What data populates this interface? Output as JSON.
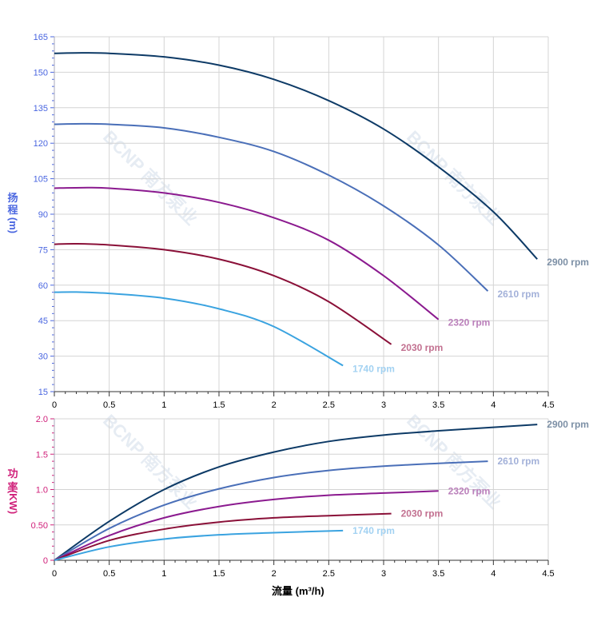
{
  "chart_data": [
    {
      "type": "line",
      "ylabel_chars": [
        "扬",
        "程",
        "(m)"
      ],
      "ylabel": "扬程 (m)",
      "xlim": [
        0,
        4.5
      ],
      "ylim": [
        15,
        165
      ],
      "yticks": [
        "15",
        "30",
        "45",
        "60",
        "75",
        "90",
        "105",
        "120",
        "135",
        "150",
        "165"
      ],
      "xticks": [
        "0",
        "0.5",
        "1",
        "1.5",
        "2",
        "2.5",
        "3",
        "3.5",
        "4",
        "4.5"
      ],
      "grid": true,
      "axis_color": "#4a66e0",
      "series": [
        {
          "name": "2900 rpm",
          "color": "#0d3a66",
          "label_color": "#7d90a6",
          "x": [
            0,
            0.25,
            0.5,
            1,
            1.5,
            2,
            2.5,
            3,
            3.5,
            4,
            4.4
          ],
          "y": [
            158,
            158.2,
            158,
            156.5,
            153,
            147,
            138,
            126,
            110,
            91,
            71
          ]
        },
        {
          "name": "2610 rpm",
          "color": "#4a6fb8",
          "label_color": "#a3b1d9",
          "x": [
            0,
            0.25,
            0.5,
            1,
            1.5,
            2,
            2.5,
            3,
            3.5,
            3.95
          ],
          "y": [
            128,
            128.2,
            128,
            126.5,
            122.5,
            116.5,
            106.5,
            93.5,
            77,
            57.5
          ]
        },
        {
          "name": "2320 rpm",
          "color": "#8b1a8f",
          "label_color": "#bb80bb",
          "x": [
            0,
            0.25,
            0.5,
            1,
            1.5,
            2,
            2.5,
            3,
            3.5
          ],
          "y": [
            101,
            101.2,
            101,
            99,
            95,
            88.5,
            79,
            64,
            45.5
          ]
        },
        {
          "name": "2030 rpm",
          "color": "#8a1038",
          "label_color": "#c27090",
          "x": [
            0,
            0.2,
            0.5,
            1,
            1.5,
            2,
            2.5,
            3.07
          ],
          "y": [
            77.3,
            77.5,
            77,
            75,
            71,
            64,
            53,
            35
          ]
        },
        {
          "name": "1740 rpm",
          "color": "#3aa3e0",
          "label_color": "#a3d2f2",
          "x": [
            0,
            0.2,
            0.5,
            1,
            1.5,
            2,
            2.63
          ],
          "y": [
            57,
            57.1,
            56.5,
            54.5,
            50,
            42.5,
            26
          ]
        }
      ]
    },
    {
      "type": "line",
      "ylabel_chars": [
        "功",
        "率",
        "(KW)"
      ],
      "ylabel": "功率 (KW)",
      "xlabel": "流量 (m³/h)",
      "xlim": [
        0,
        4.5
      ],
      "ylim": [
        0,
        2.0
      ],
      "yticks": [
        "0",
        "0.50",
        "1.0",
        "1.5",
        "2.0"
      ],
      "xticks": [
        "0",
        "0.5",
        "1",
        "1.5",
        "2",
        "2.5",
        "3",
        "3.5",
        "4",
        "4.5"
      ],
      "grid": true,
      "axis_color": "#d0207a",
      "series": [
        {
          "name": "2900 rpm",
          "color": "#0d3a66",
          "label_color": "#7d90a6",
          "x": [
            0,
            0.5,
            1,
            1.5,
            2,
            2.5,
            3,
            3.5,
            4,
            4.4
          ],
          "y": [
            0,
            0.55,
            1.0,
            1.32,
            1.53,
            1.68,
            1.77,
            1.83,
            1.88,
            1.92
          ]
        },
        {
          "name": "2610 rpm",
          "color": "#4a6fb8",
          "label_color": "#a3b1d9",
          "x": [
            0,
            0.5,
            1,
            1.5,
            2,
            2.5,
            3,
            3.5,
            3.95
          ],
          "y": [
            0,
            0.45,
            0.78,
            1.01,
            1.17,
            1.27,
            1.33,
            1.37,
            1.4
          ]
        },
        {
          "name": "2320 rpm",
          "color": "#8b1a8f",
          "label_color": "#bb80bb",
          "x": [
            0,
            0.5,
            1,
            1.5,
            2,
            2.5,
            3,
            3.5
          ],
          "y": [
            0,
            0.35,
            0.6,
            0.76,
            0.86,
            0.92,
            0.95,
            0.98
          ]
        },
        {
          "name": "2030 rpm",
          "color": "#8a1038",
          "label_color": "#c27090",
          "x": [
            0,
            0.5,
            1,
            1.5,
            2,
            2.5,
            3.07
          ],
          "y": [
            0,
            0.28,
            0.44,
            0.54,
            0.6,
            0.63,
            0.66
          ]
        },
        {
          "name": "1740 rpm",
          "color": "#3aa3e0",
          "label_color": "#a3d2f2",
          "x": [
            0,
            0.5,
            1,
            1.5,
            2,
            2.63
          ],
          "y": [
            0,
            0.19,
            0.3,
            0.36,
            0.39,
            0.42
          ]
        }
      ]
    }
  ],
  "watermark": "BCNP 南方泵业"
}
